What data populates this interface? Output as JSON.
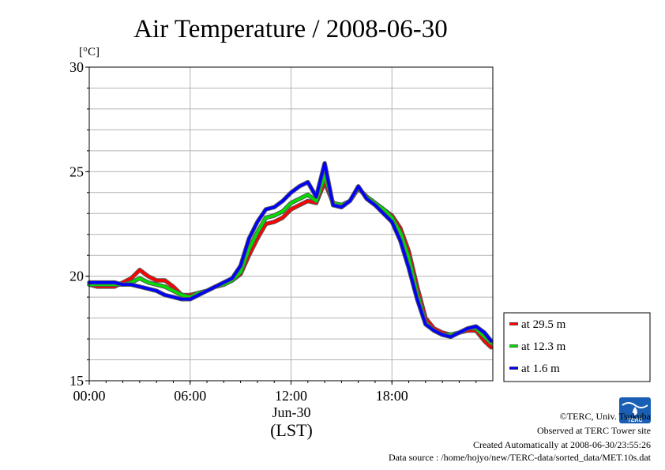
{
  "chart_data": {
    "type": "line",
    "title": "Air Temperature / 2008-06-30",
    "ylabel": "[°C]",
    "xlabel": "(LST)",
    "x_date_label": "Jun-30",
    "ylim": [
      15,
      30
    ],
    "xlim": [
      0,
      24
    ],
    "yticks": [
      15,
      20,
      25,
      30
    ],
    "xticks": [
      {
        "value": 0,
        "label": "00:00"
      },
      {
        "value": 6,
        "label": "06:00"
      },
      {
        "value": 12,
        "label": "12:00"
      },
      {
        "value": 18,
        "label": "18:00"
      }
    ],
    "grid": true,
    "legend_position": "right",
    "x_unit": "hour of day",
    "series": [
      {
        "name": "at 29.5 m",
        "color": "#ff0000",
        "x": [
          0,
          0.5,
          1,
          1.5,
          2,
          2.5,
          3,
          3.5,
          4,
          4.5,
          5,
          5.5,
          6,
          6.5,
          7,
          7.5,
          8,
          8.5,
          9,
          9.5,
          10,
          10.5,
          11,
          11.5,
          12,
          12.5,
          13,
          13.5,
          14,
          14.5,
          15,
          15.5,
          16,
          16.5,
          17,
          17.5,
          18,
          18.5,
          19,
          19.5,
          20,
          20.5,
          21,
          21.5,
          22,
          22.5,
          23,
          23.5,
          23.9
        ],
        "y": [
          19.6,
          19.5,
          19.5,
          19.5,
          19.7,
          19.9,
          20.3,
          20.0,
          19.8,
          19.8,
          19.5,
          19.1,
          19.1,
          19.2,
          19.3,
          19.5,
          19.6,
          19.8,
          20.1,
          21.0,
          21.8,
          22.5,
          22.6,
          22.8,
          23.2,
          23.4,
          23.6,
          23.5,
          24.5,
          23.5,
          23.4,
          23.6,
          24.2,
          23.8,
          23.5,
          23.2,
          22.9,
          22.3,
          21.2,
          19.5,
          18.0,
          17.5,
          17.3,
          17.2,
          17.3,
          17.4,
          17.4,
          16.9,
          16.6
        ]
      },
      {
        "name": "at 12.3 m",
        "color": "#00dd00",
        "x": [
          0,
          0.5,
          1,
          1.5,
          2,
          2.5,
          3,
          3.5,
          4,
          4.5,
          5,
          5.5,
          6,
          6.5,
          7,
          7.5,
          8,
          8.5,
          9,
          9.5,
          10,
          10.5,
          11,
          11.5,
          12,
          12.5,
          13,
          13.5,
          14,
          14.5,
          15,
          15.5,
          16,
          16.5,
          17,
          17.5,
          18,
          18.5,
          19,
          19.5,
          20,
          20.5,
          21,
          21.5,
          22,
          22.5,
          23,
          23.5,
          23.9
        ],
        "y": [
          19.6,
          19.6,
          19.6,
          19.6,
          19.6,
          19.7,
          19.9,
          19.7,
          19.6,
          19.5,
          19.3,
          19.1,
          19.0,
          19.2,
          19.3,
          19.5,
          19.6,
          19.8,
          20.2,
          21.3,
          22.1,
          22.8,
          22.9,
          23.1,
          23.5,
          23.7,
          23.9,
          23.6,
          24.8,
          23.5,
          23.4,
          23.6,
          24.2,
          23.8,
          23.5,
          23.2,
          22.8,
          22.1,
          20.9,
          19.2,
          17.8,
          17.4,
          17.2,
          17.2,
          17.3,
          17.5,
          17.5,
          17.1,
          16.8
        ]
      },
      {
        "name": "at 1.6 m",
        "color": "#0000ff",
        "x": [
          0,
          0.5,
          1,
          1.5,
          2,
          2.5,
          3,
          3.5,
          4,
          4.5,
          5,
          5.5,
          6,
          6.5,
          7,
          7.5,
          8,
          8.5,
          9,
          9.5,
          10,
          10.5,
          11,
          11.5,
          12,
          12.5,
          13,
          13.5,
          14,
          14.5,
          15,
          15.5,
          16,
          16.5,
          17,
          17.5,
          18,
          18.5,
          19,
          19.5,
          20,
          20.5,
          21,
          21.5,
          22,
          22.5,
          23,
          23.5,
          23.9
        ],
        "y": [
          19.7,
          19.7,
          19.7,
          19.7,
          19.6,
          19.6,
          19.5,
          19.4,
          19.3,
          19.1,
          19.0,
          18.9,
          18.9,
          19.1,
          19.3,
          19.5,
          19.7,
          19.9,
          20.5,
          21.8,
          22.6,
          23.2,
          23.3,
          23.6,
          24.0,
          24.3,
          24.5,
          23.8,
          25.4,
          23.4,
          23.3,
          23.6,
          24.3,
          23.7,
          23.4,
          23.0,
          22.6,
          21.7,
          20.4,
          18.9,
          17.7,
          17.4,
          17.2,
          17.1,
          17.3,
          17.5,
          17.6,
          17.3,
          16.9
        ]
      }
    ]
  },
  "credits": {
    "copyright": "©TERC, Univ. Tsukuba",
    "observed": "Observed at TERC Tower site",
    "created": "Created Automatically at 2008-06-30/23:55:26",
    "source": "Data source : /home/hojyo/new/TERC-data/sorted_data/MET.10s.dat"
  },
  "logo": {
    "text": "TERC",
    "colors": [
      "#1a5fb4",
      "#ffffff"
    ]
  }
}
